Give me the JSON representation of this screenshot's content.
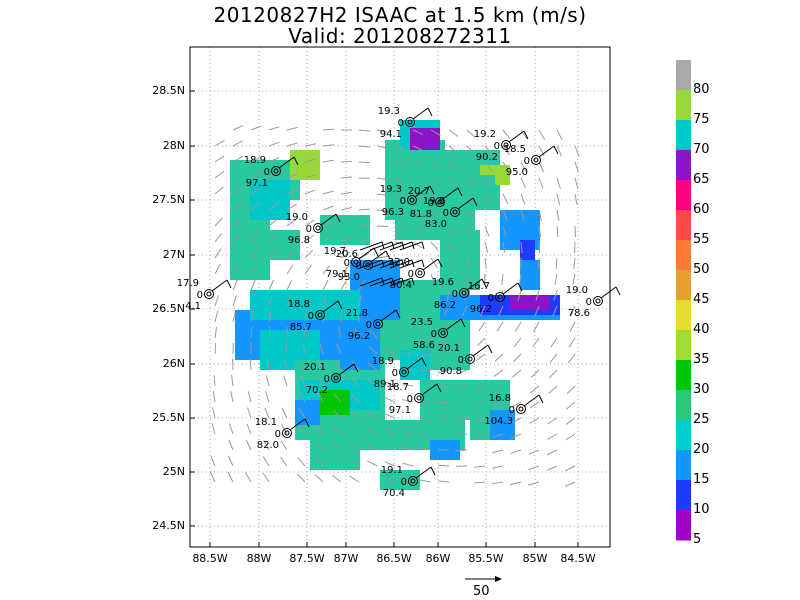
{
  "title_line1": "20120827H2 ISAAC at 1.5 km (m/s)",
  "title_line2": "Valid: 201208272311",
  "map": {
    "lat_ticks": [
      "28.5N",
      "28N",
      "27.5N",
      "27N",
      "26.5N",
      "26N",
      "25.5N",
      "25N",
      "24.5N"
    ],
    "lon_ticks": [
      "88.5W",
      "88W",
      "87.5W",
      "87W",
      "86.5W",
      "86W",
      "85.5W",
      "85W",
      "84.5W"
    ],
    "grid": true,
    "land": false
  },
  "colorbar": {
    "labels": [
      "80",
      "75",
      "70",
      "65",
      "60",
      "55",
      "50",
      "45",
      "40",
      "35",
      "30",
      "25",
      "20",
      "15",
      "10",
      "5"
    ],
    "colors": [
      "#aaaaaa",
      "#98d93a",
      "#00c8c8",
      "#8a14c8",
      "#ff0082",
      "#ff4848",
      "#ff7a32",
      "#e6a032",
      "#e6dc32",
      "#a0dc32",
      "#00c800",
      "#28c87a",
      "#00cccc",
      "#1496ff",
      "#1e3cff",
      "#a000c8"
    ]
  },
  "scale_vector": {
    "label": "50"
  },
  "stations": [
    {
      "top": "19.3",
      "mid": "0",
      "bot": "94.1"
    },
    {
      "top": "19.2",
      "mid": "0",
      "bot": "90.2"
    },
    {
      "top": "18.5",
      "mid": "0",
      "bot": "95.0"
    },
    {
      "top": "18.9",
      "mid": "0",
      "bot": "97.1"
    },
    {
      "top": "19.3",
      "mid": "0",
      "bot": "96.3"
    },
    {
      "top": "20.7",
      "mid": "0",
      "bot": "81.8"
    },
    {
      "top": "19.6",
      "mid": "0",
      "bot": "83.0"
    },
    {
      "top": "19.0",
      "mid": "0",
      "bot": "96.8"
    },
    {
      "top": "19.7",
      "mid": "0",
      "bot": "79.1"
    },
    {
      "top": "20.6",
      "mid": "0",
      "bot": "93.0"
    },
    {
      "top": "22.0",
      "mid": "0",
      "bot": "80.4"
    },
    {
      "top": "17.9",
      "mid": "0",
      "bot": "4.1"
    },
    {
      "top": "18.8",
      "mid": "0",
      "bot": "85.7"
    },
    {
      "top": "19.6",
      "mid": "0",
      "bot": "86.2"
    },
    {
      "top": "16.7",
      "mid": "0",
      "bot": "96.2"
    },
    {
      "top": "19.0",
      "mid": "0",
      "bot": "78.6"
    },
    {
      "top": "23.5",
      "mid": "0",
      "bot": "58.6"
    },
    {
      "top": "21.8",
      "mid": "0",
      "bot": "96.2"
    },
    {
      "top": "20.1",
      "mid": "0",
      "bot": "90.8"
    },
    {
      "top": "18.9",
      "mid": "0",
      "bot": "89.1"
    },
    {
      "top": "20.1",
      "mid": "0",
      "bot": "70.2"
    },
    {
      "top": "18.7",
      "mid": "0",
      "bot": "97.1"
    },
    {
      "top": "16.8",
      "mid": "0",
      "bot": "104.3"
    },
    {
      "top": "18.1",
      "mid": "0",
      "bot": "82.0"
    },
    {
      "top": "19.1",
      "mid": "0",
      "bot": "70.4"
    }
  ]
}
